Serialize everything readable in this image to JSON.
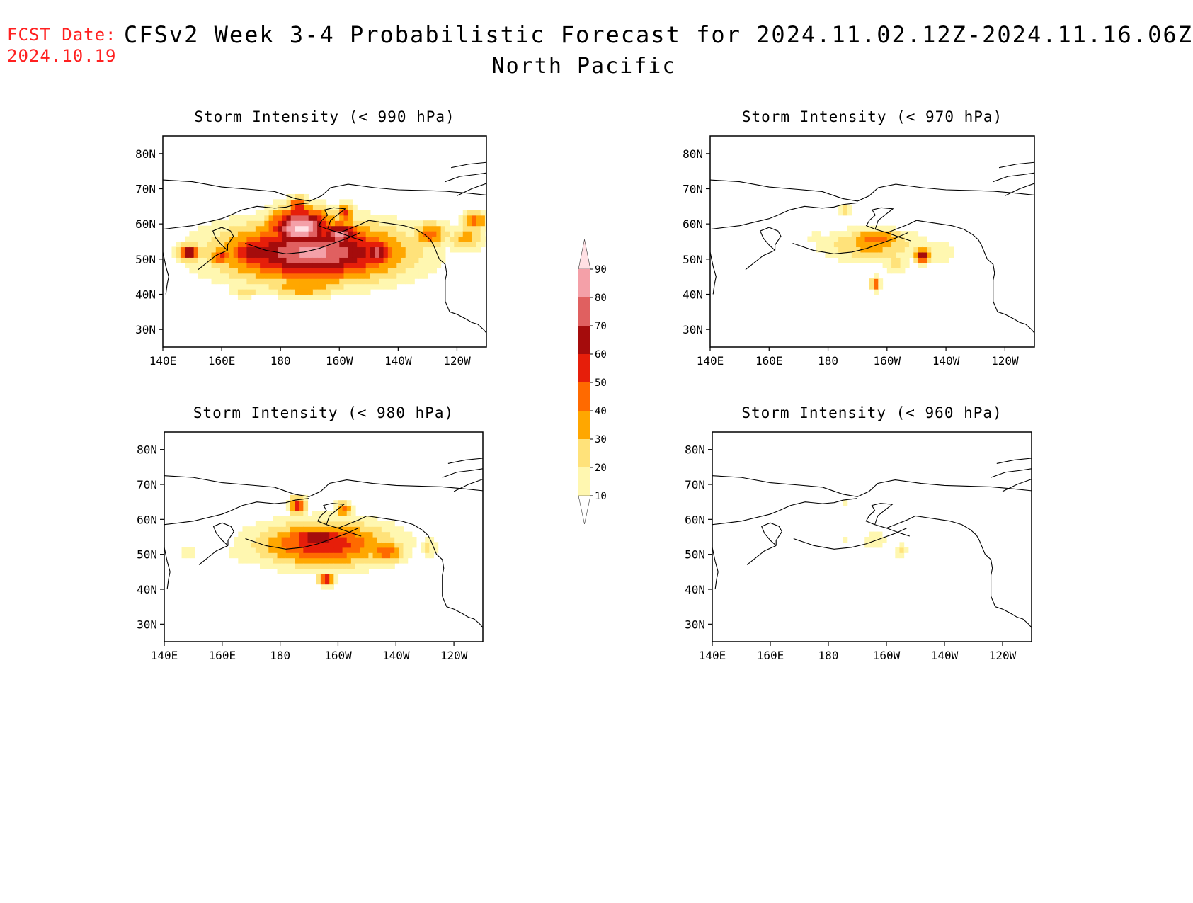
{
  "header": {
    "fcst_label": "FCST Date:",
    "fcst_date": "2024.10.19",
    "title": "CFSv2 Week 3-4 Probabilistic Forecast for 2024.11.02.12Z-2024.11.16.06Z",
    "subtitle": "North Pacific"
  },
  "axes": {
    "lon_ticks": [
      "140E",
      "160E",
      "180",
      "160W",
      "140W",
      "120W"
    ],
    "lat_ticks": [
      "80N",
      "70N",
      "60N",
      "50N",
      "40N",
      "30N"
    ]
  },
  "colorbar": {
    "levels": [
      "10",
      "20",
      "30",
      "40",
      "50",
      "60",
      "70",
      "80",
      "90"
    ],
    "colors": [
      "#fff7b0",
      "#ffe27a",
      "#ffa700",
      "#ff6a00",
      "#e61e0a",
      "#a50c0c",
      "#e06060",
      "#f4a0a8",
      "#ffe0e4"
    ]
  },
  "chart_data": [
    {
      "type": "heatmap",
      "title": "Storm Intensity (< 990 hPa)",
      "lon_range": [
        140,
        250
      ],
      "lat_range": [
        25,
        85
      ],
      "blobs": [
        {
          "lon": 191,
          "lat": 52,
          "a": 33,
          "b": 9,
          "p": 82
        },
        {
          "lon": 187,
          "lat": 59,
          "a": 12,
          "b": 6,
          "p": 94
        },
        {
          "lon": 171,
          "lat": 52,
          "a": 10,
          "b": 5,
          "p": 68
        },
        {
          "lon": 160,
          "lat": 51,
          "a": 5,
          "b": 3,
          "p": 52
        },
        {
          "lon": 149,
          "lat": 52,
          "a": 4,
          "b": 2.5,
          "p": 75
        },
        {
          "lon": 213,
          "lat": 52,
          "a": 7,
          "b": 5,
          "p": 72
        },
        {
          "lon": 231,
          "lat": 57,
          "a": 7,
          "b": 4,
          "p": 45
        },
        {
          "lon": 243,
          "lat": 56,
          "a": 7,
          "b": 4,
          "p": 35
        },
        {
          "lon": 188,
          "lat": 42,
          "a": 15,
          "b": 3,
          "p": 38
        },
        {
          "lon": 168,
          "lat": 41,
          "a": 5,
          "b": 2,
          "p": 30
        },
        {
          "lon": 186,
          "lat": 65,
          "a": 4,
          "b": 3,
          "p": 60
        },
        {
          "lon": 202,
          "lat": 63,
          "a": 3,
          "b": 3,
          "p": 55
        },
        {
          "lon": 246,
          "lat": 61,
          "a": 5,
          "b": 3,
          "p": 45
        },
        {
          "lon": 200,
          "lat": 57,
          "a": 8,
          "b": 4,
          "p": 85
        }
      ]
    },
    {
      "type": "heatmap",
      "title": "Storm Intensity (< 980 hPa)",
      "lon_range": [
        140,
        250
      ],
      "lat_range": [
        25,
        85
      ],
      "blobs": [
        {
          "lon": 195,
          "lat": 53,
          "a": 25,
          "b": 7,
          "p": 58
        },
        {
          "lon": 193,
          "lat": 55,
          "a": 13,
          "b": 3,
          "p": 72
        },
        {
          "lon": 180,
          "lat": 52,
          "a": 10,
          "b": 5,
          "p": 34
        },
        {
          "lon": 167,
          "lat": 51,
          "a": 6,
          "b": 4,
          "p": 18
        },
        {
          "lon": 148,
          "lat": 50,
          "a": 5,
          "b": 3,
          "p": 14
        },
        {
          "lon": 216,
          "lat": 51,
          "a": 8,
          "b": 4,
          "p": 46
        },
        {
          "lon": 231,
          "lat": 52,
          "a": 4,
          "b": 3,
          "p": 22
        },
        {
          "lon": 196,
          "lat": 43,
          "a": 3,
          "b": 2,
          "p": 60
        },
        {
          "lon": 186,
          "lat": 64,
          "a": 3,
          "b": 3,
          "p": 55
        },
        {
          "lon": 202,
          "lat": 63,
          "a": 3,
          "b": 2.5,
          "p": 48
        }
      ]
    },
    {
      "type": "heatmap",
      "title": "Storm Intensity (< 970 hPa)",
      "lon_range": [
        140,
        250
      ],
      "lat_range": [
        25,
        85
      ],
      "blobs": [
        {
          "lon": 195,
          "lat": 54,
          "a": 18,
          "b": 5,
          "p": 34
        },
        {
          "lon": 196,
          "lat": 56,
          "a": 10,
          "b": 3,
          "p": 48
        },
        {
          "lon": 212,
          "lat": 51,
          "a": 3,
          "b": 2.5,
          "p": 70
        },
        {
          "lon": 203,
          "lat": 49,
          "a": 5,
          "b": 4,
          "p": 22
        },
        {
          "lon": 217,
          "lat": 52,
          "a": 7,
          "b": 4,
          "p": 18
        },
        {
          "lon": 176,
          "lat": 56,
          "a": 6,
          "b": 3,
          "p": 14
        },
        {
          "lon": 152,
          "lat": 53,
          "a": 2,
          "b": 1.5,
          "p": 12
        },
        {
          "lon": 196,
          "lat": 43,
          "a": 2,
          "b": 2,
          "p": 52
        },
        {
          "lon": 186,
          "lat": 64,
          "a": 2,
          "b": 2,
          "p": 35
        }
      ]
    },
    {
      "type": "heatmap",
      "title": "Storm Intensity (< 960 hPa)",
      "lon_range": [
        140,
        250
      ],
      "lat_range": [
        25,
        85
      ],
      "blobs": [
        {
          "lon": 196,
          "lat": 54,
          "a": 6,
          "b": 3,
          "p": 16
        },
        {
          "lon": 186,
          "lat": 54,
          "a": 3,
          "b": 1.5,
          "p": 12
        },
        {
          "lon": 205,
          "lat": 51,
          "a": 2,
          "b": 2,
          "p": 24
        },
        {
          "lon": 209,
          "lat": 54,
          "a": 2,
          "b": 1.5,
          "p": 12
        },
        {
          "lon": 186,
          "lat": 65,
          "a": 1.5,
          "b": 1,
          "p": 14
        }
      ]
    }
  ]
}
